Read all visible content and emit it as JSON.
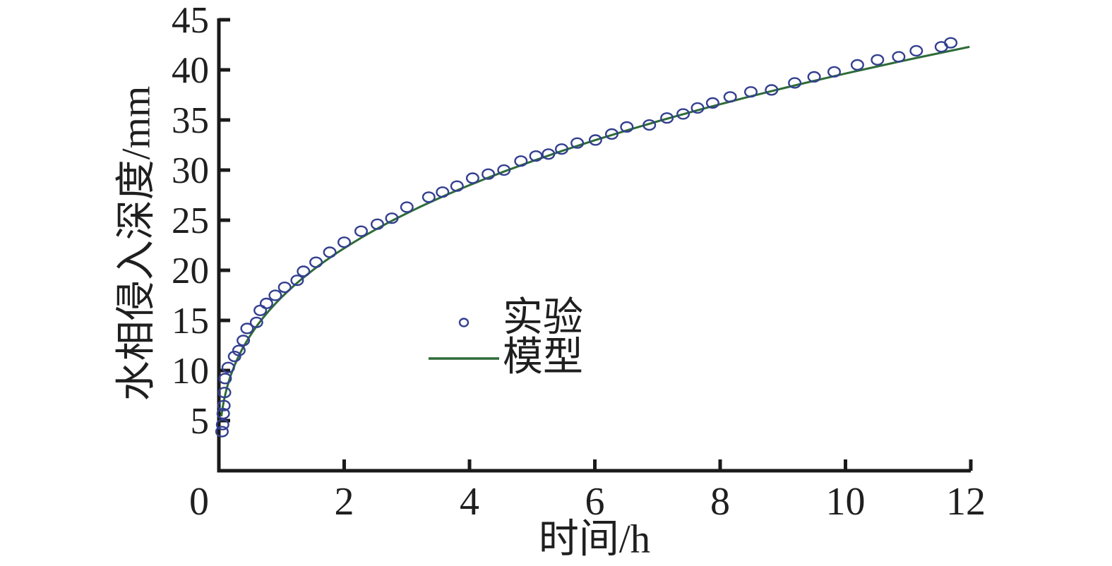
{
  "figure": {
    "background_color": "#ffffff",
    "axis_color": "#1a1a1a",
    "text_color": "#1f1f1f"
  },
  "chart_data": {
    "type": "scatter",
    "title": "",
    "xlabel": "时间/h",
    "ylabel": "水相侵入深度/mm",
    "xlim": [
      0,
      12
    ],
    "ylim": [
      0,
      45
    ],
    "x_ticks": [
      0,
      2,
      4,
      6,
      8,
      10,
      12
    ],
    "y_ticks": [
      5,
      10,
      15,
      20,
      25,
      30,
      35,
      40,
      45
    ],
    "grid": false,
    "legend": {
      "position": "inside-center",
      "entries": [
        {
          "label": "实验",
          "series": "experiment",
          "glyph": "open-circle"
        },
        {
          "label": "模型",
          "series": "model",
          "glyph": "line"
        }
      ]
    },
    "series": [
      {
        "id": "experiment",
        "name": "实验",
        "type": "scatter",
        "marker": "open-circle",
        "color": "#333f8f",
        "points": [
          [
            0.05,
            3.9
          ],
          [
            0.06,
            4.6
          ],
          [
            0.07,
            5.7
          ],
          [
            0.08,
            6.5
          ],
          [
            0.09,
            7.8
          ],
          [
            0.1,
            9.2
          ],
          [
            0.15,
            10.3
          ],
          [
            0.25,
            11.4
          ],
          [
            0.32,
            12.0
          ],
          [
            0.39,
            13.0
          ],
          [
            0.45,
            14.2
          ],
          [
            0.6,
            14.8
          ],
          [
            0.66,
            16.0
          ],
          [
            0.76,
            16.7
          ],
          [
            0.9,
            17.5
          ],
          [
            1.05,
            18.3
          ],
          [
            1.25,
            19.0
          ],
          [
            1.35,
            19.9
          ],
          [
            1.55,
            20.8
          ],
          [
            1.77,
            21.8
          ],
          [
            2.0,
            22.8
          ],
          [
            2.27,
            23.9
          ],
          [
            2.53,
            24.6
          ],
          [
            2.76,
            25.2
          ],
          [
            3.0,
            26.3
          ],
          [
            3.35,
            27.3
          ],
          [
            3.57,
            27.8
          ],
          [
            3.8,
            28.4
          ],
          [
            4.05,
            29.2
          ],
          [
            4.3,
            29.6
          ],
          [
            4.55,
            30.0
          ],
          [
            4.82,
            30.9
          ],
          [
            5.06,
            31.4
          ],
          [
            5.26,
            31.6
          ],
          [
            5.47,
            32.1
          ],
          [
            5.72,
            32.7
          ],
          [
            6.01,
            33.0
          ],
          [
            6.27,
            33.6
          ],
          [
            6.51,
            34.3
          ],
          [
            6.87,
            34.5
          ],
          [
            7.15,
            35.2
          ],
          [
            7.41,
            35.6
          ],
          [
            7.64,
            36.2
          ],
          [
            7.88,
            36.7
          ],
          [
            8.16,
            37.3
          ],
          [
            8.49,
            37.8
          ],
          [
            8.82,
            38.0
          ],
          [
            9.19,
            38.7
          ],
          [
            9.5,
            39.3
          ],
          [
            9.82,
            39.8
          ],
          [
            10.19,
            40.5
          ],
          [
            10.51,
            41.0
          ],
          [
            10.85,
            41.3
          ],
          [
            11.13,
            41.9
          ],
          [
            11.53,
            42.3
          ],
          [
            11.68,
            42.7
          ]
        ]
      },
      {
        "id": "model",
        "name": "模型",
        "type": "line",
        "color": "#2e6b38",
        "fit": {
          "form": "power",
          "equation": "depth = A * t^n",
          "A": 17.3,
          "n": 0.36,
          "t_min": 0.04,
          "t_max": 11.98
        },
        "anchor_points": [
          [
            0.25,
            10.5
          ],
          [
            0.5,
            13.5
          ],
          [
            1,
            17.3
          ],
          [
            2,
            22.2
          ],
          [
            3,
            25.7
          ],
          [
            4,
            28.5
          ],
          [
            6,
            33.0
          ],
          [
            8,
            36.5
          ],
          [
            10,
            39.5
          ],
          [
            11.98,
            42.3
          ]
        ]
      }
    ]
  }
}
